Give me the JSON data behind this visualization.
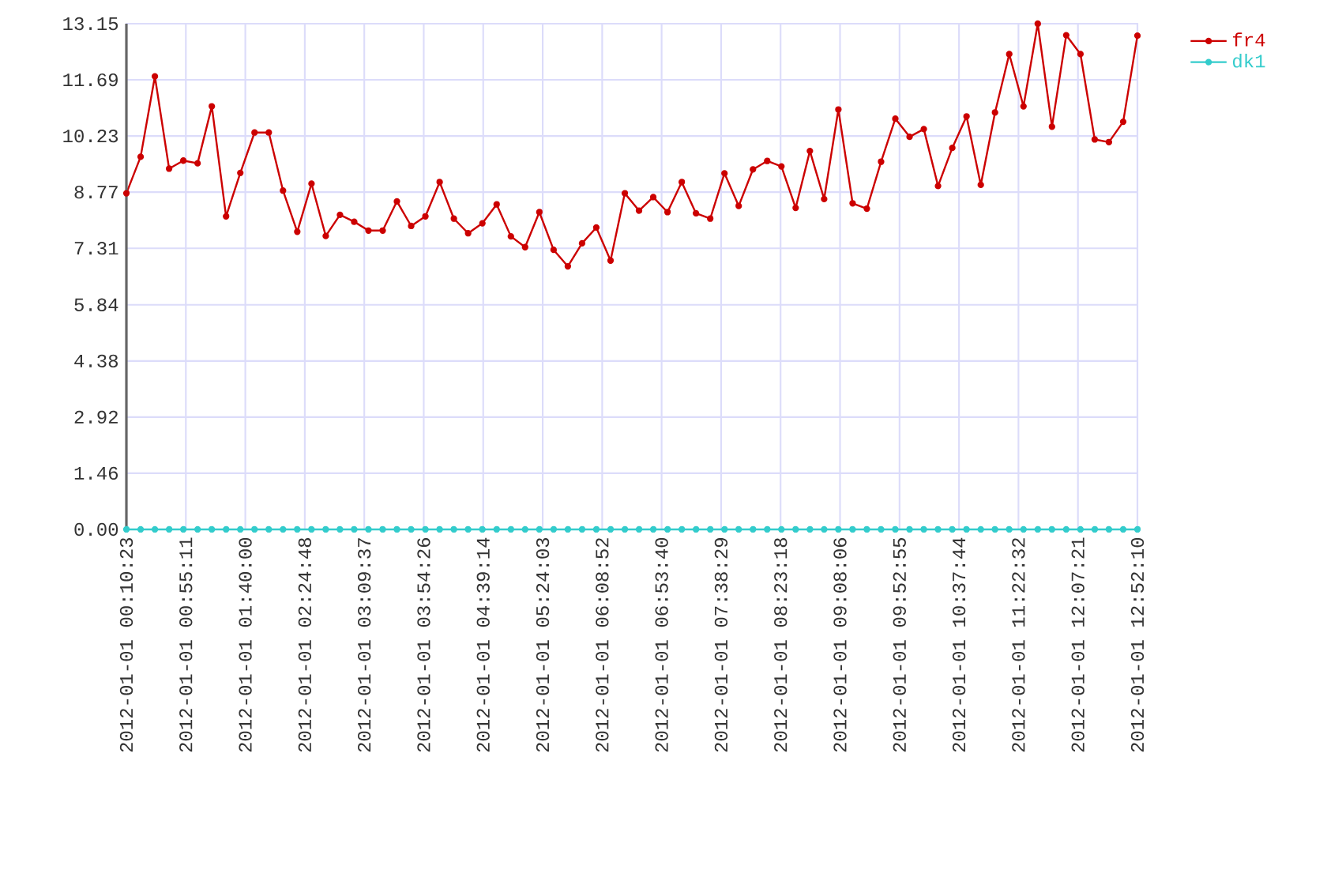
{
  "chart_data": {
    "type": "line",
    "xlim": [
      "2012-01-01T00:10:23",
      "2012-01-01T12:52:10"
    ],
    "ylim": [
      0,
      13.15
    ],
    "xticks": [
      {
        "value": "2012-01-01T00:10:23",
        "label": "2012-01-01 00:10:23"
      },
      {
        "value": "2012-01-01T00:55:11",
        "label": "2012-01-01 00:55:11"
      },
      {
        "value": "2012-01-01T01:40:00",
        "label": "2012-01-01 01:40:00"
      },
      {
        "value": "2012-01-01T02:24:48",
        "label": "2012-01-01 02:24:48"
      },
      {
        "value": "2012-01-01T03:09:37",
        "label": "2012-01-01 03:09:37"
      },
      {
        "value": "2012-01-01T03:54:26",
        "label": "2012-01-01 03:54:26"
      },
      {
        "value": "2012-01-01T04:39:14",
        "label": "2012-01-01 04:39:14"
      },
      {
        "value": "2012-01-01T05:24:03",
        "label": "2012-01-01 05:24:03"
      },
      {
        "value": "2012-01-01T06:08:52",
        "label": "2012-01-01 06:08:52"
      },
      {
        "value": "2012-01-01T06:53:40",
        "label": "2012-01-01 06:53:40"
      },
      {
        "value": "2012-01-01T07:38:29",
        "label": "2012-01-01 07:38:29"
      },
      {
        "value": "2012-01-01T08:23:18",
        "label": "2012-01-01 08:23:18"
      },
      {
        "value": "2012-01-01T09:08:06",
        "label": "2012-01-01 09:08:06"
      },
      {
        "value": "2012-01-01T09:52:55",
        "label": "2012-01-01 09:52:55"
      },
      {
        "value": "2012-01-01T10:37:44",
        "label": "2012-01-01 10:37:44"
      },
      {
        "value": "2012-01-01T11:22:32",
        "label": "2012-01-01 11:22:32"
      },
      {
        "value": "2012-01-01T12:07:21",
        "label": "2012-01-01 12:07:21"
      },
      {
        "value": "2012-01-01T12:52:10",
        "label": "2012-01-01 12:52:10"
      }
    ],
    "yticks": [
      {
        "value": 0,
        "label": "0.00"
      },
      {
        "value": 1.46,
        "label": "1.46"
      },
      {
        "value": 2.92,
        "label": "2.92"
      },
      {
        "value": 4.38,
        "label": "4.38"
      },
      {
        "value": 5.84,
        "label": "5.84"
      },
      {
        "value": 7.31,
        "label": "7.31"
      },
      {
        "value": 8.77,
        "label": "8.77"
      },
      {
        "value": 10.23,
        "label": "10.23"
      },
      {
        "value": 11.69,
        "label": "11.69"
      },
      {
        "value": 13.15,
        "label": "13.15"
      }
    ],
    "x": [
      "2012-01-01T00:10:23",
      "2012-01-01T00:21:07",
      "2012-01-01T00:31:51",
      "2012-01-01T00:42:34",
      "2012-01-01T00:53:18",
      "2012-01-01T01:04:02",
      "2012-01-01T01:14:46",
      "2012-01-01T01:25:29",
      "2012-01-01T01:36:13",
      "2012-01-01T01:46:57",
      "2012-01-01T01:57:41",
      "2012-01-01T02:08:24",
      "2012-01-01T02:19:08",
      "2012-01-01T02:29:52",
      "2012-01-01T02:40:36",
      "2012-01-01T02:51:19",
      "2012-01-01T03:02:03",
      "2012-01-01T03:12:47",
      "2012-01-01T03:23:31",
      "2012-01-01T03:34:14",
      "2012-01-01T03:44:58",
      "2012-01-01T03:55:42",
      "2012-01-01T04:06:26",
      "2012-01-01T04:17:09",
      "2012-01-01T04:27:53",
      "2012-01-01T04:38:37",
      "2012-01-01T04:49:21",
      "2012-01-01T05:00:05",
      "2012-01-01T05:10:48",
      "2012-01-01T05:21:32",
      "2012-01-01T05:32:16",
      "2012-01-01T05:43:00",
      "2012-01-01T05:53:43",
      "2012-01-01T06:04:27",
      "2012-01-01T06:15:11",
      "2012-01-01T06:25:55",
      "2012-01-01T06:36:38",
      "2012-01-01T06:47:22",
      "2012-01-01T06:58:06",
      "2012-01-01T07:08:50",
      "2012-01-01T07:19:33",
      "2012-01-01T07:30:17",
      "2012-01-01T07:41:01",
      "2012-01-01T07:51:45",
      "2012-01-01T08:02:28",
      "2012-01-01T08:13:12",
      "2012-01-01T08:23:56",
      "2012-01-01T08:34:40",
      "2012-01-01T08:45:23",
      "2012-01-01T08:56:07",
      "2012-01-01T09:06:51",
      "2012-01-01T09:17:35",
      "2012-01-01T09:28:19",
      "2012-01-01T09:39:02",
      "2012-01-01T09:49:46",
      "2012-01-01T10:00:30",
      "2012-01-01T10:11:14",
      "2012-01-01T10:21:57",
      "2012-01-01T10:32:41",
      "2012-01-01T10:43:25",
      "2012-01-01T10:54:09",
      "2012-01-01T11:04:52",
      "2012-01-01T11:15:36",
      "2012-01-01T11:26:20",
      "2012-01-01T11:37:04",
      "2012-01-01T11:47:47",
      "2012-01-01T11:58:31",
      "2012-01-01T12:09:15",
      "2012-01-01T12:19:59",
      "2012-01-01T12:30:42",
      "2012-01-01T12:41:26",
      "2012-01-01T12:52:10"
    ],
    "grid": true,
    "legend": "top right",
    "marker": "circle",
    "line_style": "solid",
    "series": [
      {
        "name": "fr4",
        "color": "#cc0000",
        "values": [
          8.74,
          9.69,
          11.78,
          9.38,
          9.59,
          9.52,
          11.0,
          8.14,
          9.27,
          10.32,
          10.32,
          8.81,
          7.74,
          8.99,
          7.63,
          8.18,
          8.0,
          7.77,
          7.77,
          8.53,
          7.89,
          8.14,
          9.03,
          8.08,
          7.7,
          7.96,
          8.45,
          7.62,
          7.34,
          8.25,
          7.27,
          6.84,
          7.44,
          7.85,
          6.99,
          8.74,
          8.29,
          8.64,
          8.25,
          9.03,
          8.22,
          8.08,
          9.26,
          8.41,
          9.36,
          9.58,
          9.44,
          8.36,
          9.84,
          8.59,
          10.92,
          8.48,
          8.34,
          9.56,
          10.68,
          10.21,
          10.41,
          8.93,
          9.92,
          10.74,
          8.96,
          10.84,
          12.36,
          11.0,
          13.15,
          10.47,
          12.85,
          12.36,
          10.14,
          10.07,
          10.6,
          12.84
        ]
      },
      {
        "name": "dk1",
        "color": "#33cccc",
        "values": [
          0,
          0,
          0,
          0,
          0,
          0,
          0,
          0,
          0,
          0,
          0,
          0,
          0,
          0,
          0,
          0,
          0,
          0,
          0,
          0,
          0,
          0,
          0,
          0,
          0,
          0,
          0,
          0,
          0,
          0,
          0,
          0,
          0,
          0,
          0,
          0,
          0,
          0,
          0,
          0,
          0,
          0,
          0,
          0,
          0,
          0,
          0,
          0,
          0,
          0,
          0,
          0,
          0,
          0,
          0,
          0,
          0,
          0,
          0,
          0,
          0,
          0,
          0,
          0,
          0,
          0,
          0,
          0,
          0,
          0,
          0,
          0
        ]
      }
    ]
  }
}
